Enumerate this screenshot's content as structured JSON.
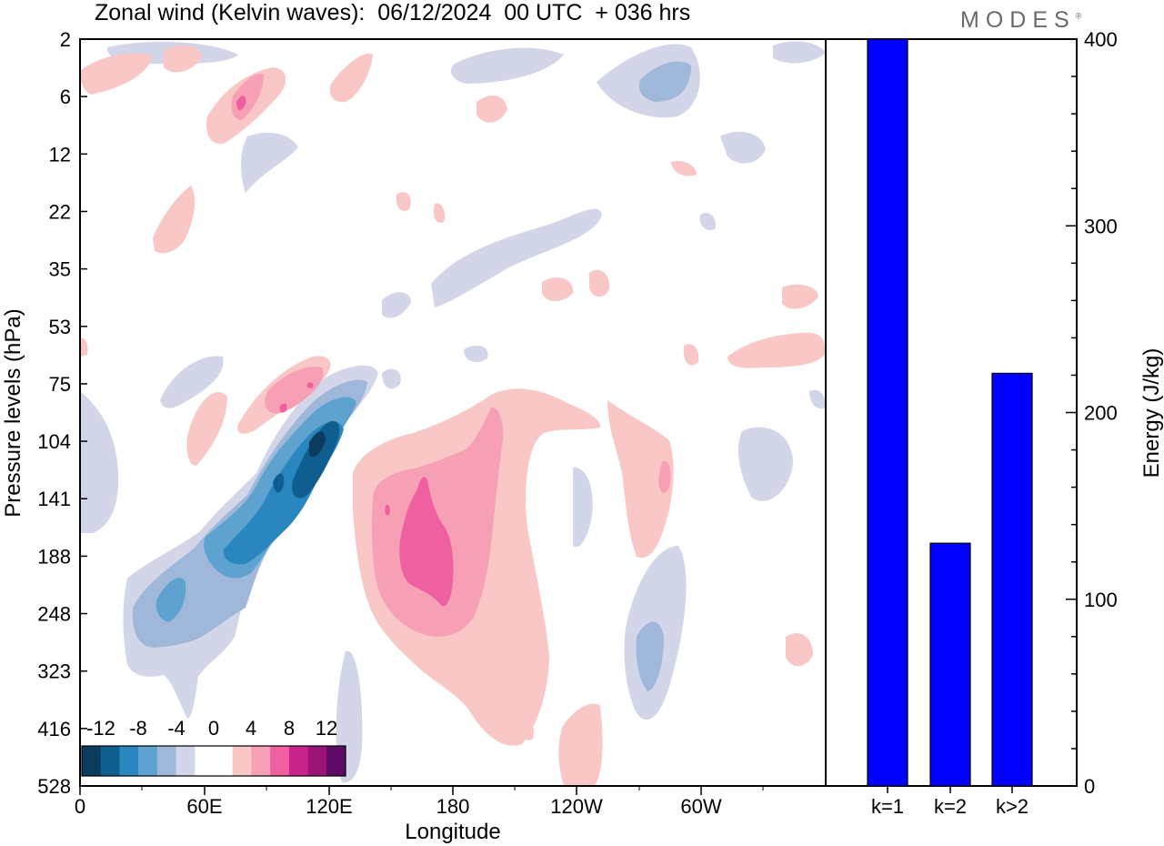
{
  "header": {
    "title": "Zonal wind (Kelvin waves):  06/12/2024  00 UTC  + 036 hrs",
    "brand": "MODES"
  },
  "chart_data": [
    {
      "type": "heatmap",
      "title": "Zonal wind (Kelvin waves):  06/12/2024  00 UTC  + 036 hrs",
      "xlabel": "Longitude",
      "ylabel": "Pressure levels (hPa)",
      "x_ticks": [
        "0",
        "60E",
        "120E",
        "180",
        "120W",
        "60W"
      ],
      "y_ticks": [
        "2",
        "6",
        "12",
        "22",
        "35",
        "53",
        "75",
        "104",
        "141",
        "188",
        "248",
        "323",
        "416",
        "528"
      ],
      "colorbar": {
        "labels": [
          "-12",
          "-8",
          "-4",
          "0",
          "4",
          "8",
          "12"
        ],
        "colors": [
          "#0d3b5e",
          "#0e5f8f",
          "#2a86bf",
          "#5ea3cf",
          "#9fb8da",
          "#d3d6e8",
          "#ffffff",
          "#ffffff",
          "#f9c8c6",
          "#f7a0b5",
          "#ee60a0",
          "#c8248a",
          "#9a1477",
          "#5c0a63"
        ]
      },
      "features": [
        {
          "sign": "negative",
          "peak": -14,
          "longitude": "117E",
          "pressure_hPa": 104
        },
        {
          "sign": "positive",
          "peak": 9,
          "longitude": "165E",
          "pressure_hPa": 188
        },
        {
          "sign": "positive",
          "peak": 8,
          "longitude": "95E",
          "pressure_hPa": 85
        },
        {
          "sign": "negative",
          "peak": -6,
          "longitude": "45E",
          "pressure_hPa": 248
        },
        {
          "sign": "negative",
          "peak": -6,
          "longitude": "87W",
          "pressure_hPa": 290
        }
      ]
    },
    {
      "type": "bar",
      "categories": [
        "k=1",
        "k=2",
        "k>2"
      ],
      "values": [
        400,
        130,
        221
      ],
      "ylabel": "Energy (J/kg)",
      "ylim": [
        0,
        400
      ],
      "y_ticks": [
        0,
        100,
        200,
        300,
        400
      ],
      "bar_color": "#0000ff"
    }
  ]
}
